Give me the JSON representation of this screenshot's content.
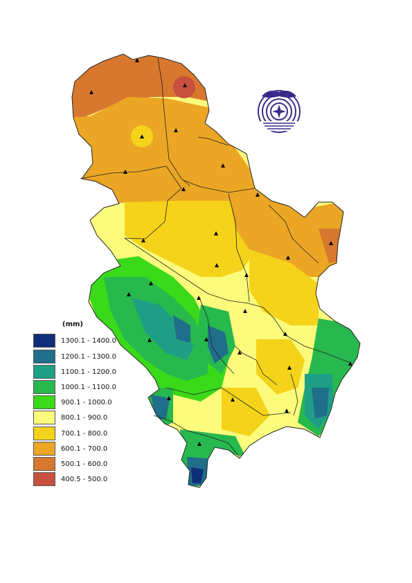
{
  "legend": {
    "unit": "(mm)",
    "classes": [
      {
        "label": "1300.1 - 1400.0",
        "color": "#0f2e7a"
      },
      {
        "label": "1200.1 - 1300.0",
        "color": "#1f6e8a"
      },
      {
        "label": "1100.1 - 1200.0",
        "color": "#1f9e86"
      },
      {
        "label": "1000.1 - 1100.0",
        "color": "#27b84e"
      },
      {
        "label": "900.1 - 1000.0",
        "color": "#3ad91a"
      },
      {
        "label": "800.1 - 900.0",
        "color": "#fcfb7c"
      },
      {
        "label": "700.1 - 800.0",
        "color": "#f4d31a"
      },
      {
        "label": "600.1 - 700.0",
        "color": "#eaa624"
      },
      {
        "label": "500.1 - 600.0",
        "color": "#d8782e"
      },
      {
        "label": "400.5 - 500.0",
        "color": "#c8503e"
      }
    ]
  },
  "map": {
    "subject": "precipitation",
    "station_symbol": "black-triangle",
    "logo_icon": "institute-emblem-icon"
  }
}
